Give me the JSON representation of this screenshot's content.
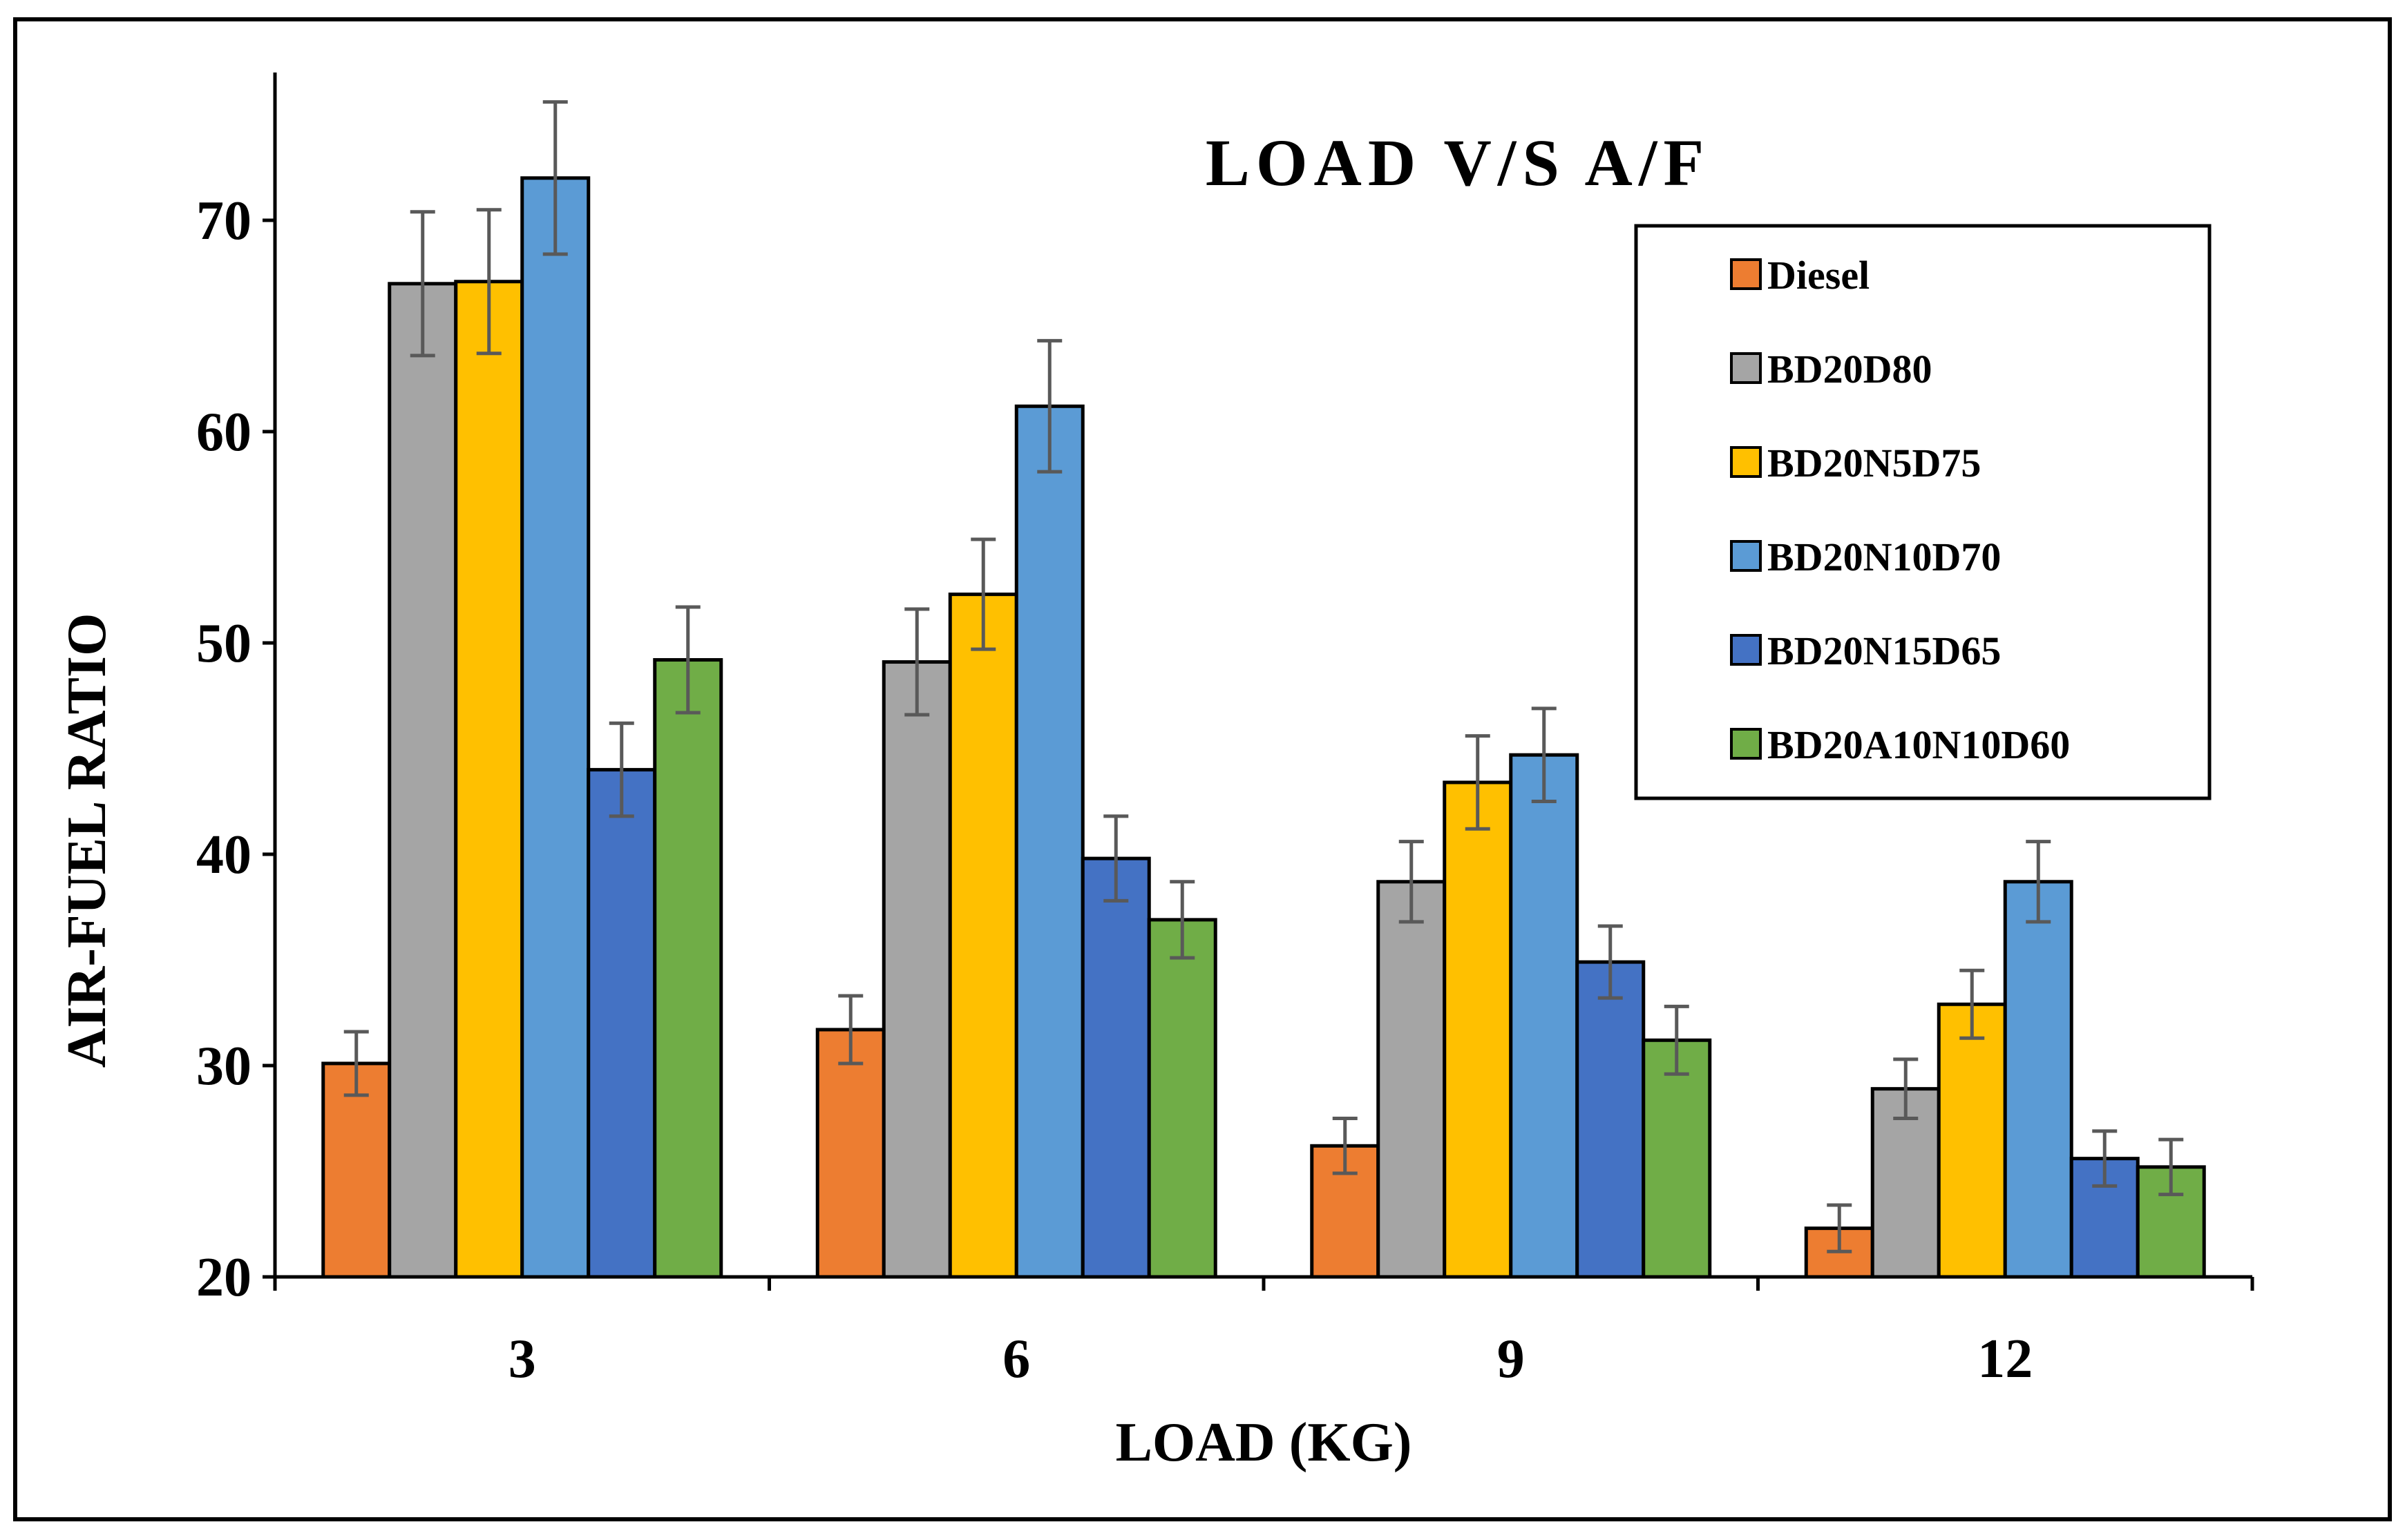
{
  "chart_data": {
    "type": "bar",
    "title": "LOAD V/S A/F",
    "xlabel": "LOAD (KG)",
    "ylabel": "AIR-FUEL RATIO",
    "categories": [
      "3",
      "6",
      "9",
      "12"
    ],
    "ylim": [
      20,
      75
    ],
    "yticks": [
      20,
      30,
      40,
      50,
      60,
      70
    ],
    "legend_position": "top-right",
    "series": [
      {
        "name": "Diesel",
        "color": "#ED7D31",
        "values": [
          30.1,
          31.7,
          26.2,
          22.3
        ],
        "errors": [
          1.5,
          1.6,
          1.3,
          1.1
        ]
      },
      {
        "name": "BD20D80",
        "color": "#A5A5A5",
        "values": [
          67.0,
          49.1,
          38.7,
          28.9
        ],
        "errors": [
          3.4,
          2.5,
          1.9,
          1.4
        ]
      },
      {
        "name": "BD20N5D75",
        "color": "#FFC000",
        "values": [
          67.1,
          52.3,
          43.4,
          32.9
        ],
        "errors": [
          3.4,
          2.6,
          2.2,
          1.6
        ]
      },
      {
        "name": "BD20N10D70",
        "color": "#5B9BD5",
        "values": [
          72.0,
          61.2,
          44.7,
          38.7
        ],
        "errors": [
          3.6,
          3.1,
          2.2,
          1.9
        ]
      },
      {
        "name": "BD20N15D65",
        "color": "#4472C4",
        "values": [
          44.0,
          39.8,
          34.9,
          25.6
        ],
        "errors": [
          2.2,
          2.0,
          1.7,
          1.3
        ]
      },
      {
        "name": "BD20A10N10D60",
        "color": "#70AD47",
        "values": [
          49.2,
          36.9,
          31.2,
          25.2
        ],
        "errors": [
          2.5,
          1.8,
          1.6,
          1.3
        ]
      }
    ]
  }
}
